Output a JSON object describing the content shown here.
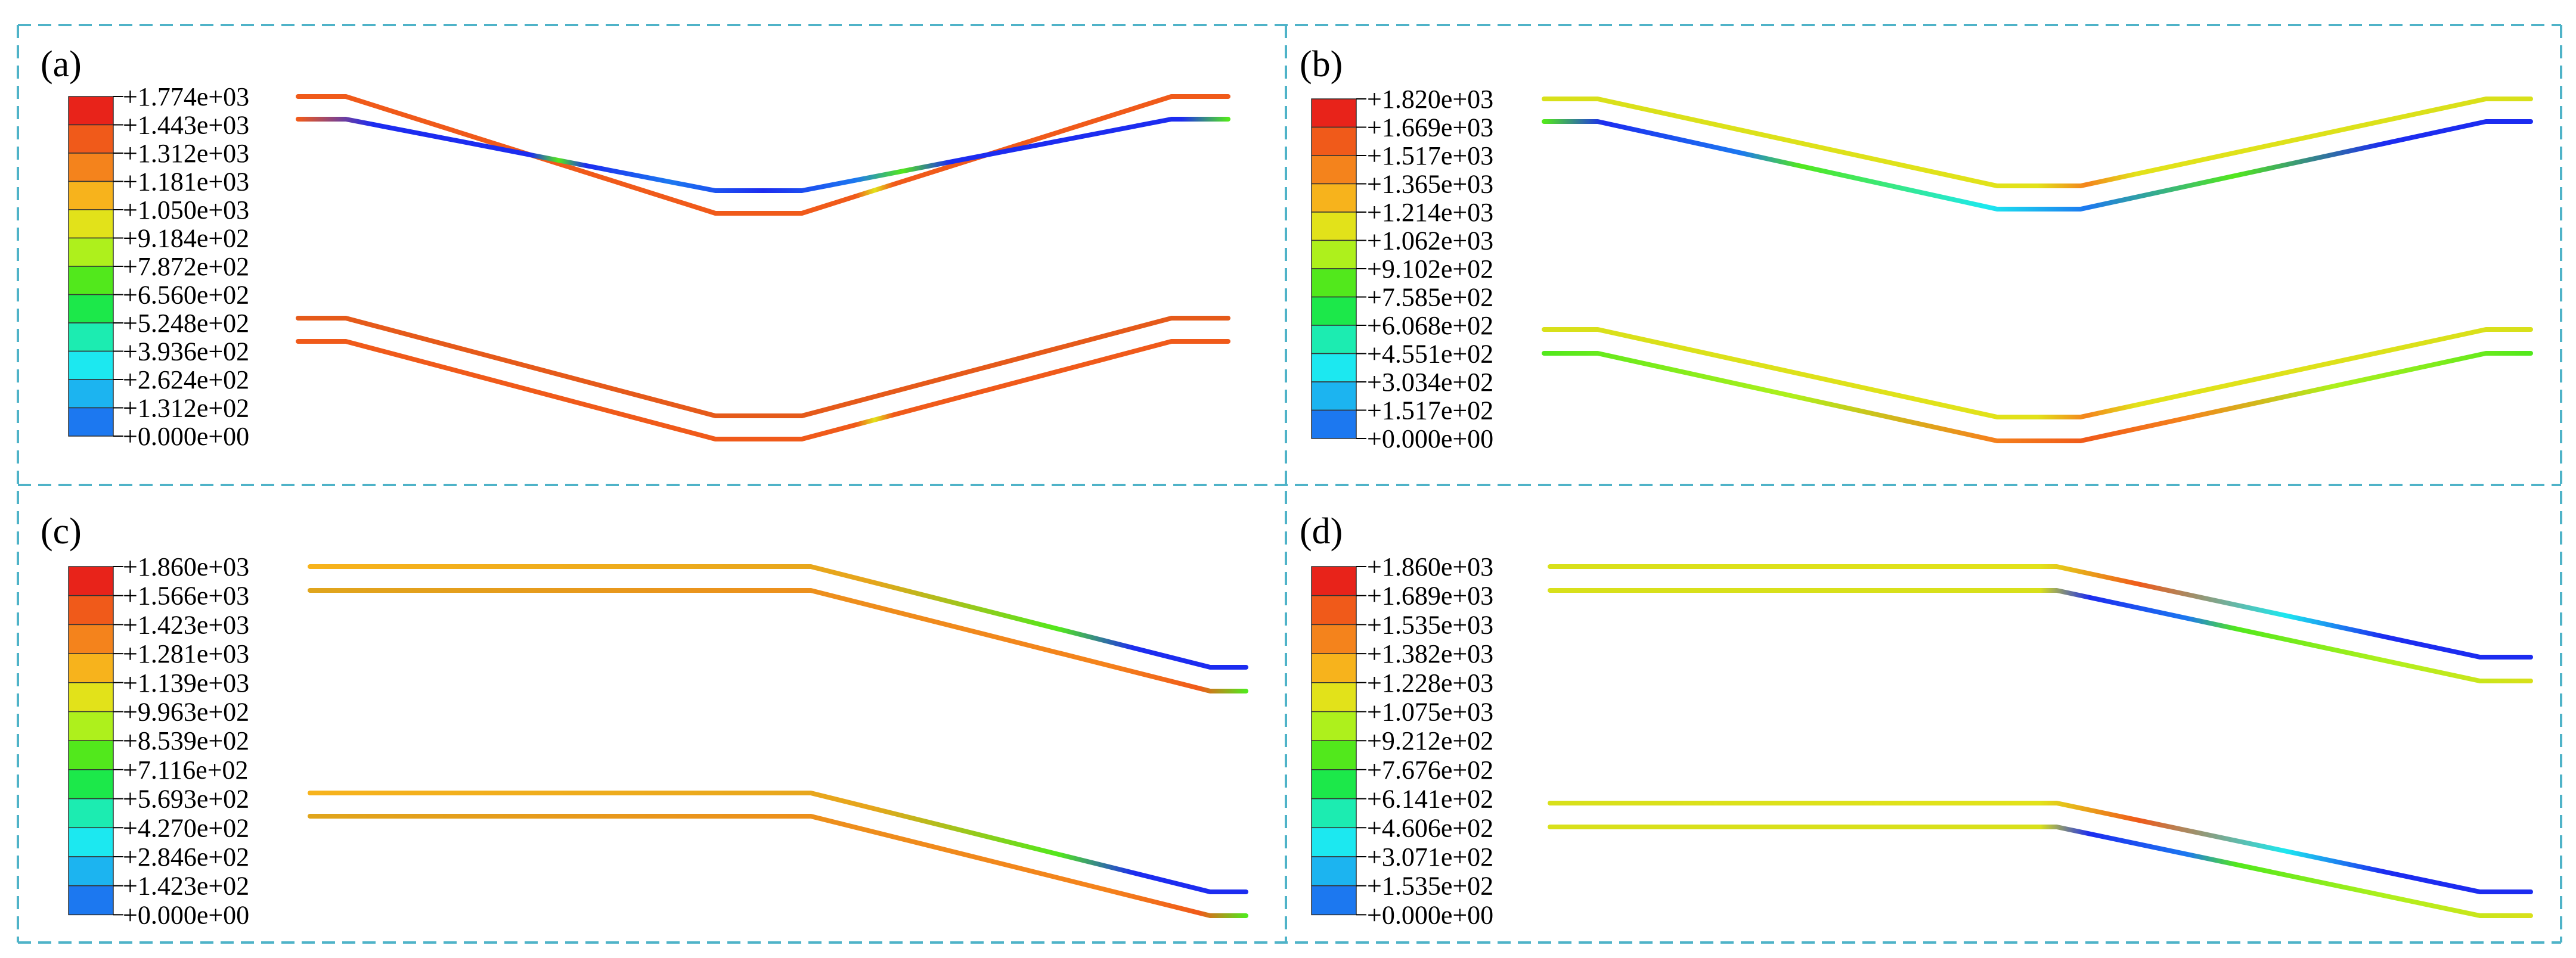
{
  "panels": [
    {
      "label": "(a)",
      "legend": [
        "+1.774e+03",
        "+1.443e+03",
        "+1.312e+03",
        "+1.181e+03",
        "+1.050e+03",
        "+9.184e+02",
        "+7.872e+02",
        "+6.560e+02",
        "+5.248e+02",
        "+3.936e+02",
        "+2.624e+02",
        "+1.312e+02",
        "+0.000e+00"
      ]
    },
    {
      "label": "(b)",
      "legend": [
        "+1.820e+03",
        "+1.669e+03",
        "+1.517e+03",
        "+1.365e+03",
        "+1.214e+03",
        "+1.062e+03",
        "+9.102e+02",
        "+7.585e+02",
        "+6.068e+02",
        "+4.551e+02",
        "+3.034e+02",
        "+1.517e+02",
        "+0.000e+00"
      ]
    },
    {
      "label": "(c)",
      "legend": [
        "+1.860e+03",
        "+1.566e+03",
        "+1.423e+03",
        "+1.281e+03",
        "+1.139e+03",
        "+9.963e+02",
        "+8.539e+02",
        "+7.116e+02",
        "+5.693e+02",
        "+4.270e+02",
        "+2.846e+02",
        "+1.423e+02",
        "+0.000e+00"
      ]
    },
    {
      "label": "(d)",
      "legend": [
        "+1.860e+03",
        "+1.689e+03",
        "+1.535e+03",
        "+1.382e+03",
        "+1.228e+03",
        "+1.075e+03",
        "+9.212e+02",
        "+7.676e+02",
        "+6.141e+02",
        "+4.606e+02",
        "+3.071e+02",
        "+1.535e+02",
        "+0.000e+00"
      ]
    }
  ],
  "colors": {
    "scale": [
      "#e8231a",
      "#f05a1a",
      "#f4831c",
      "#f7b31c",
      "#e2e21a",
      "#aef01c",
      "#52e81c",
      "#1ce84a",
      "#1cecb1",
      "#1ce8f0",
      "#1cb4f0",
      "#1c78f0",
      "#1c2cf0"
    ],
    "frame": "#4fb3c8"
  }
}
